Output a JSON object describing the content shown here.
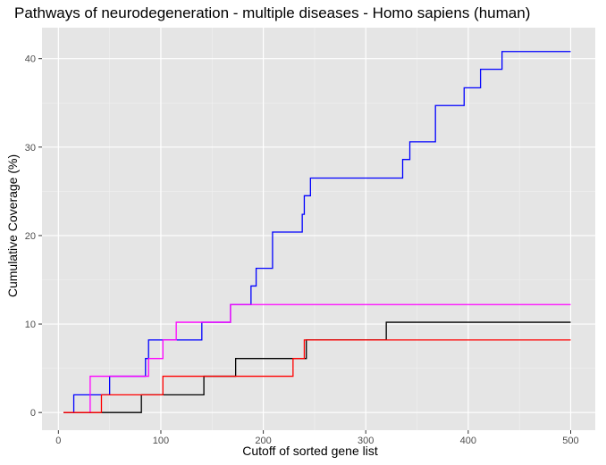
{
  "chart_data": {
    "type": "line",
    "title": "Pathways of neurodegeneration - multiple diseases - Homo sapiens (human)",
    "xlabel": "Cutoff of sorted gene list",
    "ylabel": "Cumulative Coverage (%)",
    "xlim": [
      -16,
      524
    ],
    "ylim": [
      -2,
      43.5
    ],
    "x_ticks": [
      0,
      100,
      200,
      300,
      400,
      500
    ],
    "y_ticks": [
      0,
      10,
      20,
      30,
      40
    ],
    "grid": true,
    "legend": "none",
    "background": "#e5e5e5",
    "series": [
      {
        "color": "#0000ff",
        "steps": [
          [
            5,
            0
          ],
          [
            15,
            2
          ],
          [
            50,
            4.1
          ],
          [
            85,
            6.1
          ],
          [
            88,
            8.2
          ],
          [
            140,
            10.2
          ],
          [
            168,
            12.2
          ],
          [
            188,
            14.3
          ],
          [
            193,
            16.3
          ],
          [
            209,
            20.4
          ],
          [
            238,
            22.4
          ],
          [
            240,
            24.5
          ],
          [
            246,
            26.5
          ],
          [
            336,
            28.6
          ],
          [
            343,
            30.6
          ],
          [
            368,
            34.7
          ],
          [
            396,
            36.7
          ],
          [
            412,
            38.8
          ],
          [
            433,
            40.8
          ],
          [
            500,
            40.8
          ]
        ]
      },
      {
        "color": "#ff00ff",
        "steps": [
          [
            5,
            0
          ],
          [
            31,
            4.1
          ],
          [
            88,
            6.1
          ],
          [
            102,
            8.2
          ],
          [
            115,
            10.2
          ],
          [
            168,
            12.2
          ],
          [
            500,
            12.2
          ]
        ]
      },
      {
        "color": "#000000",
        "steps": [
          [
            5,
            0
          ],
          [
            81,
            2
          ],
          [
            142,
            4.1
          ],
          [
            173,
            6.1
          ],
          [
            242,
            8.2
          ],
          [
            320,
            10.2
          ],
          [
            500,
            10.2
          ]
        ]
      },
      {
        "color": "#ff0000",
        "steps": [
          [
            5,
            0
          ],
          [
            42,
            2
          ],
          [
            102,
            4.1
          ],
          [
            229,
            6.1
          ],
          [
            240,
            8.2
          ],
          [
            500,
            8.2
          ]
        ]
      }
    ]
  }
}
